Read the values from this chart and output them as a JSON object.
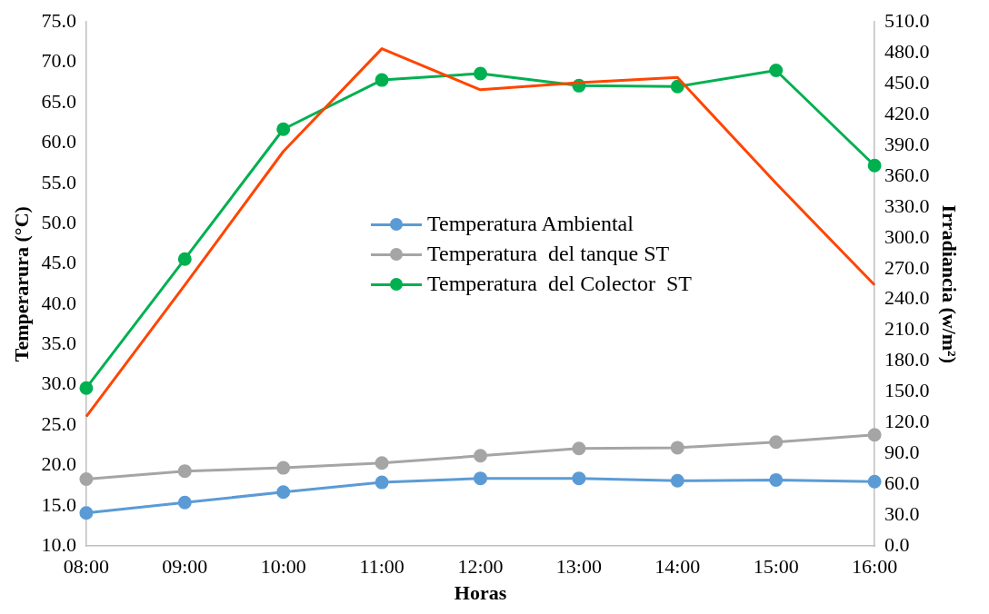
{
  "chart_data": {
    "type": "line",
    "xlabel": "Horas",
    "ylabel": "Temperarura (°C)",
    "y2label": "Irradiancia (w/m²)",
    "categories": [
      "08:00",
      "09:00",
      "10:00",
      "11:00",
      "12:00",
      "13:00",
      "14:00",
      "15:00",
      "16:00"
    ],
    "series": [
      {
        "name": "Temperatura Ambiental",
        "color": "#5b9bd5",
        "marker": "circle",
        "values": [
          14.1,
          15.4,
          16.7,
          17.9,
          18.4,
          18.4,
          18.1,
          18.2,
          18.0
        ]
      },
      {
        "name": "Temperatura  del tanque ST",
        "color": "#a5a5a5",
        "marker": "circle",
        "values": [
          18.3,
          19.3,
          19.7,
          20.3,
          21.2,
          22.1,
          22.2,
          22.9,
          23.8
        ]
      },
      {
        "name": "Temperatura  del Colector  ST",
        "color": "#00b050",
        "marker": "circle",
        "values": [
          29.6,
          45.6,
          61.7,
          67.8,
          68.6,
          67.1,
          67.0,
          69.0,
          57.2
        ]
      },
      {
        "color": "#ff4500",
        "marker": "none",
        "axis": "y2",
        "values": [
          126,
          254,
          384,
          484,
          444,
          451,
          456,
          353,
          254
        ]
      }
    ],
    "ylim": [
      10,
      75
    ],
    "yticks": [
      {
        "value": 10,
        "label": "10.0"
      },
      {
        "value": 15,
        "label": "15.0"
      },
      {
        "value": 20,
        "label": "20.0"
      },
      {
        "value": 25,
        "label": "25.0"
      },
      {
        "value": 30,
        "label": "30.0"
      },
      {
        "value": 35,
        "label": "35.0"
      },
      {
        "value": 40,
        "label": "40.0"
      },
      {
        "value": 45,
        "label": "45.0"
      },
      {
        "value": 50,
        "label": "50.0"
      },
      {
        "value": 55,
        "label": "55.0"
      },
      {
        "value": 60,
        "label": "60.0"
      },
      {
        "value": 65,
        "label": "65.0"
      },
      {
        "value": 70,
        "label": "70.0"
      },
      {
        "value": 75,
        "label": "75.0"
      }
    ],
    "y2lim": [
      0,
      510
    ],
    "y2ticks": [
      {
        "value": 0,
        "label": "0.0"
      },
      {
        "value": 30,
        "label": "30.0"
      },
      {
        "value": 60,
        "label": "60.0"
      },
      {
        "value": 90,
        "label": "90.0"
      },
      {
        "value": 120,
        "label": "120.0"
      },
      {
        "value": 150,
        "label": "150.0"
      },
      {
        "value": 180,
        "label": "180.0"
      },
      {
        "value": 210,
        "label": "210.0"
      },
      {
        "value": 240,
        "label": "240.0"
      },
      {
        "value": 270,
        "label": "270.0"
      },
      {
        "value": 300,
        "label": "300.0"
      },
      {
        "value": 330,
        "label": "330.0"
      },
      {
        "value": 360,
        "label": "360.0"
      },
      {
        "value": 390,
        "label": "390.0"
      },
      {
        "value": 420,
        "label": "420.0"
      },
      {
        "value": 450,
        "label": "450.0"
      },
      {
        "value": 480,
        "label": "480.0"
      },
      {
        "value": 510,
        "label": "510.0"
      }
    ],
    "grid": false,
    "legend": "center"
  }
}
